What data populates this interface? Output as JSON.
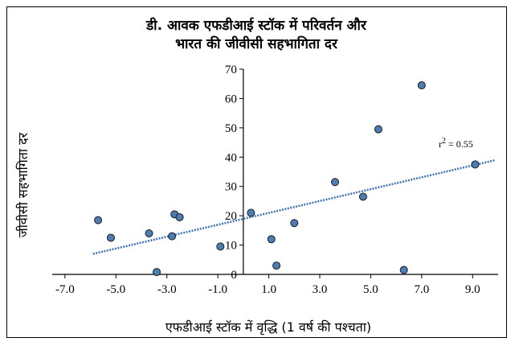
{
  "chart_data": {
    "type": "scatter",
    "title_line1": "डी. आवक एफडीआई स्टॉक में परिवर्तन और",
    "title_line2": "भारत की जीवीसी सहभागिता दर",
    "xlabel": "एफडीआई स्टॉक में वृद्धि (1 वर्ष की पश्चता)",
    "ylabel": "जीवीसी सहभागिता दर",
    "xlim": [
      -7.5,
      10.0
    ],
    "ylim": [
      0,
      70
    ],
    "x_ticks": [
      "-7.0",
      "-5.0",
      "-3.0",
      "-1.0",
      "1.0",
      "3.0",
      "5.0",
      "7.0",
      "9.0"
    ],
    "x_tick_values": [
      -7,
      -5,
      -3,
      -1,
      1,
      3,
      5,
      7,
      9
    ],
    "y_ticks": [
      "0",
      "10",
      "20",
      "30",
      "40",
      "50",
      "60",
      "70"
    ],
    "y_tick_values": [
      0,
      10,
      20,
      30,
      40,
      50,
      60,
      70
    ],
    "annotation": "r",
    "annotation_sup": "2",
    "annotation_value": "= 0.55",
    "point_color": "#4d7db3",
    "trend_color": "#3d73b8",
    "points": [
      {
        "x": -5.7,
        "y": 18.5
      },
      {
        "x": -5.2,
        "y": 12.5
      },
      {
        "x": -3.7,
        "y": 14.0
      },
      {
        "x": -3.4,
        "y": 0.8
      },
      {
        "x": -2.7,
        "y": 20.5
      },
      {
        "x": -2.5,
        "y": 19.5
      },
      {
        "x": -2.8,
        "y": 13.0
      },
      {
        "x": -0.9,
        "y": 9.5
      },
      {
        "x": 0.3,
        "y": 21.0
      },
      {
        "x": 1.1,
        "y": 12.0
      },
      {
        "x": 1.3,
        "y": 3.0
      },
      {
        "x": 2.0,
        "y": 17.5
      },
      {
        "x": 3.6,
        "y": 31.5
      },
      {
        "x": 4.7,
        "y": 26.5
      },
      {
        "x": 5.3,
        "y": 49.5
      },
      {
        "x": 6.3,
        "y": 1.5
      },
      {
        "x": 7.0,
        "y": 64.5
      },
      {
        "x": 9.1,
        "y": 37.5
      }
    ],
    "trendline": {
      "x": [
        -5.9,
        9.9
      ],
      "y": [
        7.0,
        39.0
      ]
    }
  }
}
